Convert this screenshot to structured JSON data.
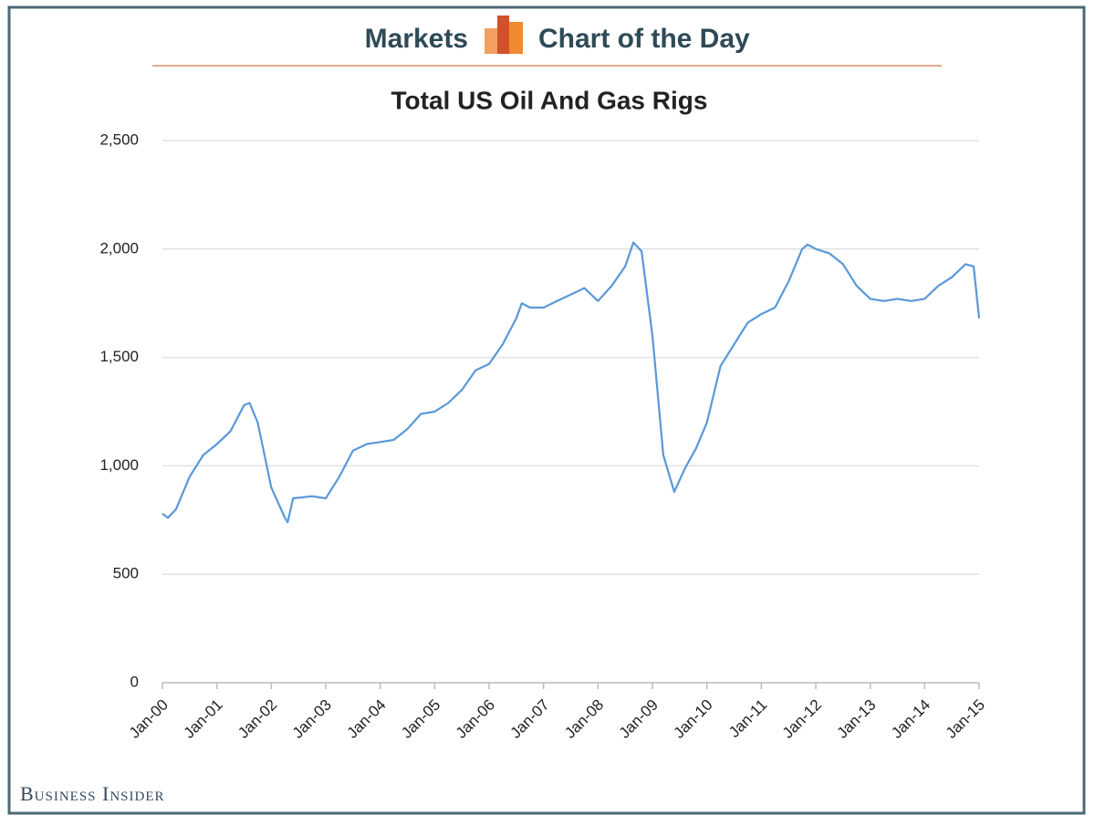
{
  "header": {
    "left": "Markets",
    "right": "Chart of the Day"
  },
  "footer": "Business Insider",
  "chart_data": {
    "type": "line",
    "title": "Total US Oil And Gas Rigs",
    "x": [
      2000.0,
      2000.1,
      2000.25,
      2000.5,
      2000.75,
      2001.0,
      2001.25,
      2001.5,
      2001.6,
      2001.75,
      2002.0,
      2002.25,
      2002.3,
      2002.4,
      2002.75,
      2003.0,
      2003.25,
      2003.5,
      2003.75,
      2004.0,
      2004.25,
      2004.5,
      2004.75,
      2005.0,
      2005.25,
      2005.5,
      2005.75,
      2006.0,
      2006.25,
      2006.5,
      2006.6,
      2006.75,
      2007.0,
      2007.25,
      2007.5,
      2007.75,
      2008.0,
      2008.25,
      2008.5,
      2008.65,
      2008.8,
      2009.0,
      2009.2,
      2009.4,
      2009.6,
      2009.8,
      2010.0,
      2010.25,
      2010.5,
      2010.75,
      2011.0,
      2011.25,
      2011.5,
      2011.75,
      2011.85,
      2012.0,
      2012.25,
      2012.5,
      2012.75,
      2013.0,
      2013.25,
      2013.5,
      2013.75,
      2014.0,
      2014.25,
      2014.5,
      2014.75,
      2014.9,
      2015.0
    ],
    "series": [
      {
        "name": "Total US Oil And Gas Rigs",
        "color": "#5a98d8",
        "values": [
          780,
          760,
          800,
          950,
          1050,
          1100,
          1160,
          1280,
          1290,
          1200,
          900,
          760,
          740,
          850,
          860,
          850,
          950,
          1070,
          1100,
          1110,
          1120,
          1170,
          1240,
          1250,
          1290,
          1350,
          1440,
          1470,
          1560,
          1680,
          1750,
          1730,
          1730,
          1760,
          1790,
          1820,
          1760,
          1830,
          1920,
          2030,
          1990,
          1600,
          1050,
          880,
          990,
          1080,
          1200,
          1460,
          1560,
          1660,
          1700,
          1730,
          1850,
          2000,
          2020,
          2000,
          1980,
          1930,
          1830,
          1770,
          1760,
          1770,
          1760,
          1770,
          1830,
          1870,
          1930,
          1920,
          1680
        ]
      }
    ],
    "xlim": [
      2000,
      2015
    ],
    "xticks": [
      {
        "value": 2000,
        "label": "Jan-00"
      },
      {
        "value": 2001,
        "label": "Jan-01"
      },
      {
        "value": 2002,
        "label": "Jan-02"
      },
      {
        "value": 2003,
        "label": "Jan-03"
      },
      {
        "value": 2004,
        "label": "Jan-04"
      },
      {
        "value": 2005,
        "label": "Jan-05"
      },
      {
        "value": 2006,
        "label": "Jan-06"
      },
      {
        "value": 2007,
        "label": "Jan-07"
      },
      {
        "value": 2008,
        "label": "Jan-08"
      },
      {
        "value": 2009,
        "label": "Jan-09"
      },
      {
        "value": 2010,
        "label": "Jan-10"
      },
      {
        "value": 2011,
        "label": "Jan-11"
      },
      {
        "value": 2012,
        "label": "Jan-12"
      },
      {
        "value": 2013,
        "label": "Jan-13"
      },
      {
        "value": 2014,
        "label": "Jan-14"
      },
      {
        "value": 2015,
        "label": "Jan-15"
      }
    ],
    "ylim": [
      0,
      2500
    ],
    "yticks": [
      0,
      500,
      {
        "value": 1000,
        "label": "1,000"
      },
      {
        "value": 1500,
        "label": "1,500"
      },
      {
        "value": 2000,
        "label": "2,000"
      },
      {
        "value": 2500,
        "label": "2,500"
      }
    ],
    "grid": true
  }
}
